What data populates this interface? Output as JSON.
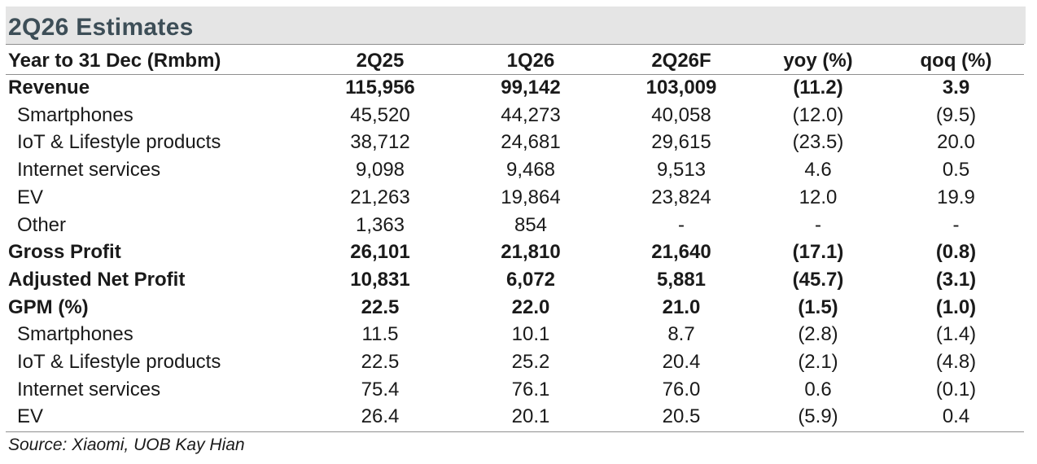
{
  "title": "2Q26 Estimates",
  "header": {
    "label": "Year to 31 Dec (Rmbm)",
    "columns": [
      "2Q25",
      "1Q26",
      "2Q26F",
      "yoy (%)",
      "qoq (%)"
    ]
  },
  "rows": [
    {
      "label": "Revenue",
      "values": [
        "115,956",
        "99,142",
        "103,009",
        "(11.2)",
        "3.9"
      ]
    },
    {
      "label": "Smartphones",
      "values": [
        "45,520",
        "44,273",
        "40,058",
        "(12.0)",
        "(9.5)"
      ]
    },
    {
      "label": "IoT & Lifestyle products",
      "values": [
        "38,712",
        "24,681",
        "29,615",
        "(23.5)",
        "20.0"
      ]
    },
    {
      "label": "Internet services",
      "values": [
        "9,098",
        "9,468",
        "9,513",
        "4.6",
        "0.5"
      ]
    },
    {
      "label": "EV",
      "values": [
        "21,263",
        "19,864",
        "23,824",
        "12.0",
        "19.9"
      ]
    },
    {
      "label": "Other",
      "values": [
        "1,363",
        "854",
        "-",
        "-",
        "-"
      ]
    },
    {
      "label": "Gross Profit",
      "values": [
        "26,101",
        "21,810",
        "21,640",
        "(17.1)",
        "(0.8)"
      ]
    },
    {
      "label": "Adjusted Net Profit",
      "values": [
        "10,831",
        "6,072",
        "5,881",
        "(45.7)",
        "(3.1)"
      ]
    },
    {
      "label": "GPM (%)",
      "values": [
        "22.5",
        "22.0",
        "21.0",
        "(1.5)",
        "(1.0)"
      ]
    },
    {
      "label": "Smartphones",
      "values": [
        "11.5",
        "10.1",
        "8.7",
        "(2.8)",
        "(1.4)"
      ]
    },
    {
      "label": "IoT & Lifestyle products",
      "values": [
        "22.5",
        "25.2",
        "20.4",
        "(2.1)",
        "(4.8)"
      ]
    },
    {
      "label": "Internet services",
      "values": [
        "75.4",
        "76.1",
        "76.0",
        "0.6",
        "(0.1)"
      ]
    },
    {
      "label": "EV",
      "values": [
        "26.4",
        "20.1",
        "20.5",
        "(5.9)",
        "0.4"
      ]
    }
  ],
  "source": "Source: Xiaomi, UOB Kay Hian"
}
